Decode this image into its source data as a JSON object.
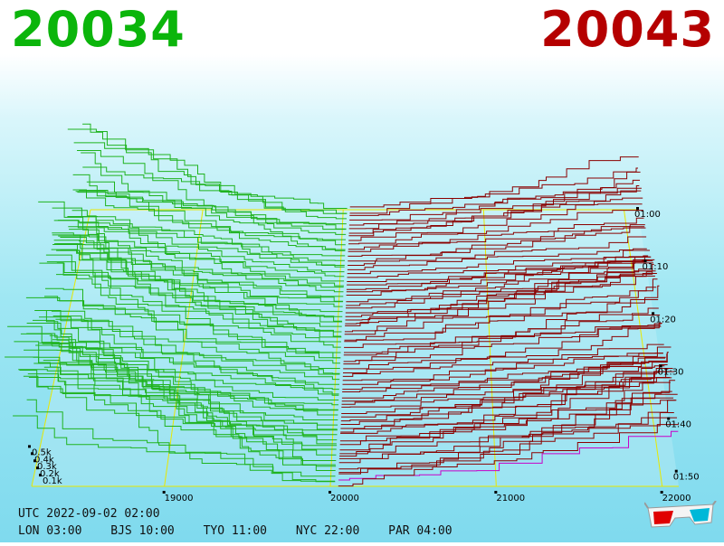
{
  "header": {
    "bid": "20034",
    "ask": "20043",
    "bid_color": "#0bb50b",
    "ask_color": "#b50000"
  },
  "footer": {
    "utc": "UTC 2022-09-02 02:00",
    "timezones": [
      {
        "label": "LON 03:00"
      },
      {
        "label": "BJS 10:00"
      },
      {
        "label": "TYO 11:00"
      },
      {
        "label": "NYC 22:00"
      },
      {
        "label": "PAR 04:00"
      }
    ]
  },
  "icons": {
    "glasses": "3d-glasses-icon"
  },
  "colors": {
    "bid_line": "#1fb31f",
    "ask_line": "#8a0000",
    "grid": "#e8e800",
    "latest": "#c800c8"
  },
  "chart_data": {
    "type": "line",
    "x_ticks": [
      19000,
      20000,
      21000,
      22000
    ],
    "x_tick_labels": [
      "19000",
      "20000",
      "21000",
      "22000"
    ],
    "time_labels": [
      "01:00",
      "01:10",
      "01:20",
      "01:30",
      "01:40",
      "01:50"
    ],
    "volume_labels": [
      "0.1k",
      "0.2k",
      "0.3k",
      "0.4k",
      "0.5k"
    ],
    "mid_price": 20038,
    "xlim": [
      18200,
      22100
    ],
    "max_volume": 1000,
    "n_snapshots": 70
  }
}
